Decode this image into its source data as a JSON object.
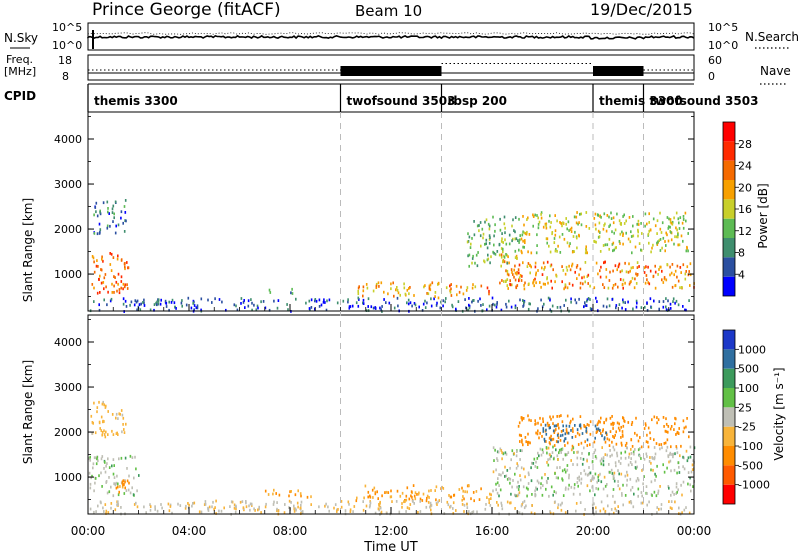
{
  "header": {
    "title": "Prince George (fitACF)",
    "beam": "Beam 10",
    "date": "19/Dec/2015"
  },
  "top_panels": {
    "nsky_label": "N.Sky",
    "nsky_ticks": [
      "10^5",
      "10^0"
    ],
    "nsearch_label": "N.Search",
    "nsearch_ticks": [
      "10^5",
      "10^0"
    ],
    "freq_label": "Freq.",
    "freq_unit": "[MHz]",
    "freq_ticks": [
      "18",
      "8"
    ],
    "nave_label": "Nave",
    "nave_ticks": [
      "60",
      "0"
    ],
    "cpid_label": "CPID"
  },
  "cpid_segments": [
    {
      "name": "themis 3300",
      "start_hr": 0
    },
    {
      "name": "twofsound 3503",
      "start_hr": 10
    },
    {
      "name": "rbsp 200",
      "start_hr": 14
    },
    {
      "name": "themis 3300",
      "start_hr": 20
    },
    {
      "name": "twofsound 3503",
      "start_hr": 22
    }
  ],
  "x_axis": {
    "label": "Time UT",
    "ticks": [
      "00:00",
      "04:00",
      "08:00",
      "12:00",
      "16:00",
      "20:00",
      "00:00"
    ]
  },
  "power_panel": {
    "ylabel": "Slant Range [km]",
    "yticks": [
      "1000",
      "2000",
      "3000",
      "4000"
    ],
    "colorbar_label": "Power [dB]",
    "colorbar_ticks": [
      "4",
      "8",
      "12",
      "16",
      "20",
      "24",
      "28"
    ]
  },
  "velocity_panel": {
    "ylabel": "Slant Range [km]",
    "yticks": [
      "1000",
      "2000",
      "3000",
      "4000"
    ],
    "colorbar_label": "Velocity [m s⁻¹]",
    "colorbar_ticks": [
      "1000",
      "500",
      "100",
      "25",
      "-25",
      "-100",
      "-500",
      "-1000"
    ]
  },
  "chart_data": [
    {
      "type": "heatmap",
      "title": "Power",
      "xlabel": "Time UT",
      "ylabel": "Slant Range [km]",
      "x_range_hr": [
        0,
        24
      ],
      "y_range_km": [
        180,
        4600
      ],
      "colorbar": {
        "label": "Power [dB]",
        "range": [
          0,
          32
        ],
        "ticks": [
          4,
          8,
          12,
          16,
          20,
          24,
          28
        ]
      },
      "scatter_regions": [
        {
          "t": [
            0.1,
            1.6
          ],
          "r": [
            600,
            1500
          ],
          "power_db": 26
        },
        {
          "t": [
            0.2,
            1.5
          ],
          "r": [
            1900,
            2700
          ],
          "power_db": 8
        },
        {
          "t": [
            0.0,
            23.9
          ],
          "r": [
            200,
            500
          ],
          "power_db": 6
        },
        {
          "t": [
            10.6,
            14.0
          ],
          "r": [
            500,
            850
          ],
          "power_db": 22
        },
        {
          "t": [
            14.0,
            15.9
          ],
          "r": [
            520,
            800
          ],
          "power_db": 24
        },
        {
          "t": [
            16.2,
            17.0
          ],
          "r": [
            700,
            1500
          ],
          "power_db": 22
        },
        {
          "t": [
            16.5,
            24.0
          ],
          "r": [
            700,
            1300
          ],
          "power_db": 24
        },
        {
          "t": [
            15.0,
            17.0
          ],
          "r": [
            1200,
            2300
          ],
          "power_db": 14
        },
        {
          "t": [
            17.0,
            23.8
          ],
          "r": [
            1500,
            2400
          ],
          "power_db": 18
        },
        {
          "t": [
            7.0,
            8.7
          ],
          "r": [
            600,
            700
          ],
          "power_db": 12
        }
      ]
    },
    {
      "type": "heatmap",
      "title": "Velocity",
      "xlabel": "Time UT",
      "ylabel": "Slant Range [km]",
      "x_range_hr": [
        0,
        24
      ],
      "y_range_km": [
        180,
        4600
      ],
      "colorbar": {
        "label": "Velocity [m s⁻¹]",
        "ticks": [
          1000,
          500,
          100,
          25,
          -25,
          -100,
          -500,
          -1000
        ]
      },
      "scatter_regions": [
        {
          "t": [
            0.0,
            2.0
          ],
          "r": [
            600,
            1500
          ],
          "velocity": 0
        },
        {
          "t": [
            1.0,
            1.6
          ],
          "r": [
            600,
            1000
          ],
          "velocity": -150
        },
        {
          "t": [
            0.1,
            1.5
          ],
          "r": [
            1900,
            2700
          ],
          "velocity": -50
        },
        {
          "t": [
            7.0,
            9.0
          ],
          "r": [
            580,
            750
          ],
          "velocity": -100
        },
        {
          "t": [
            10.5,
            16.0
          ],
          "r": [
            500,
            850
          ],
          "velocity": -100
        },
        {
          "t": [
            16.0,
            24.0
          ],
          "r": [
            600,
            1700
          ],
          "velocity": 0
        },
        {
          "t": [
            17.0,
            23.8
          ],
          "r": [
            1700,
            2400
          ],
          "velocity": -200
        },
        {
          "t": [
            18.0,
            20.5
          ],
          "r": [
            1800,
            2200
          ],
          "velocity": 150
        },
        {
          "t": [
            0.0,
            23.9
          ],
          "r": [
            200,
            500
          ],
          "velocity": -20
        }
      ]
    }
  ],
  "colors": {
    "power_scale": [
      "#0000ff",
      "#2b4fa0",
      "#3f8e6e",
      "#5dbb54",
      "#c8cf2a",
      "#f7a000",
      "#f56a00",
      "#ff2a00",
      "#ff0000"
    ],
    "velocity_scale": [
      "#1c38c8",
      "#2f6fa0",
      "#3c9a5c",
      "#62c046",
      "#bfbfb5",
      "#f8b43a",
      "#ff8c00",
      "#ff5a00",
      "#ff0000"
    ]
  }
}
